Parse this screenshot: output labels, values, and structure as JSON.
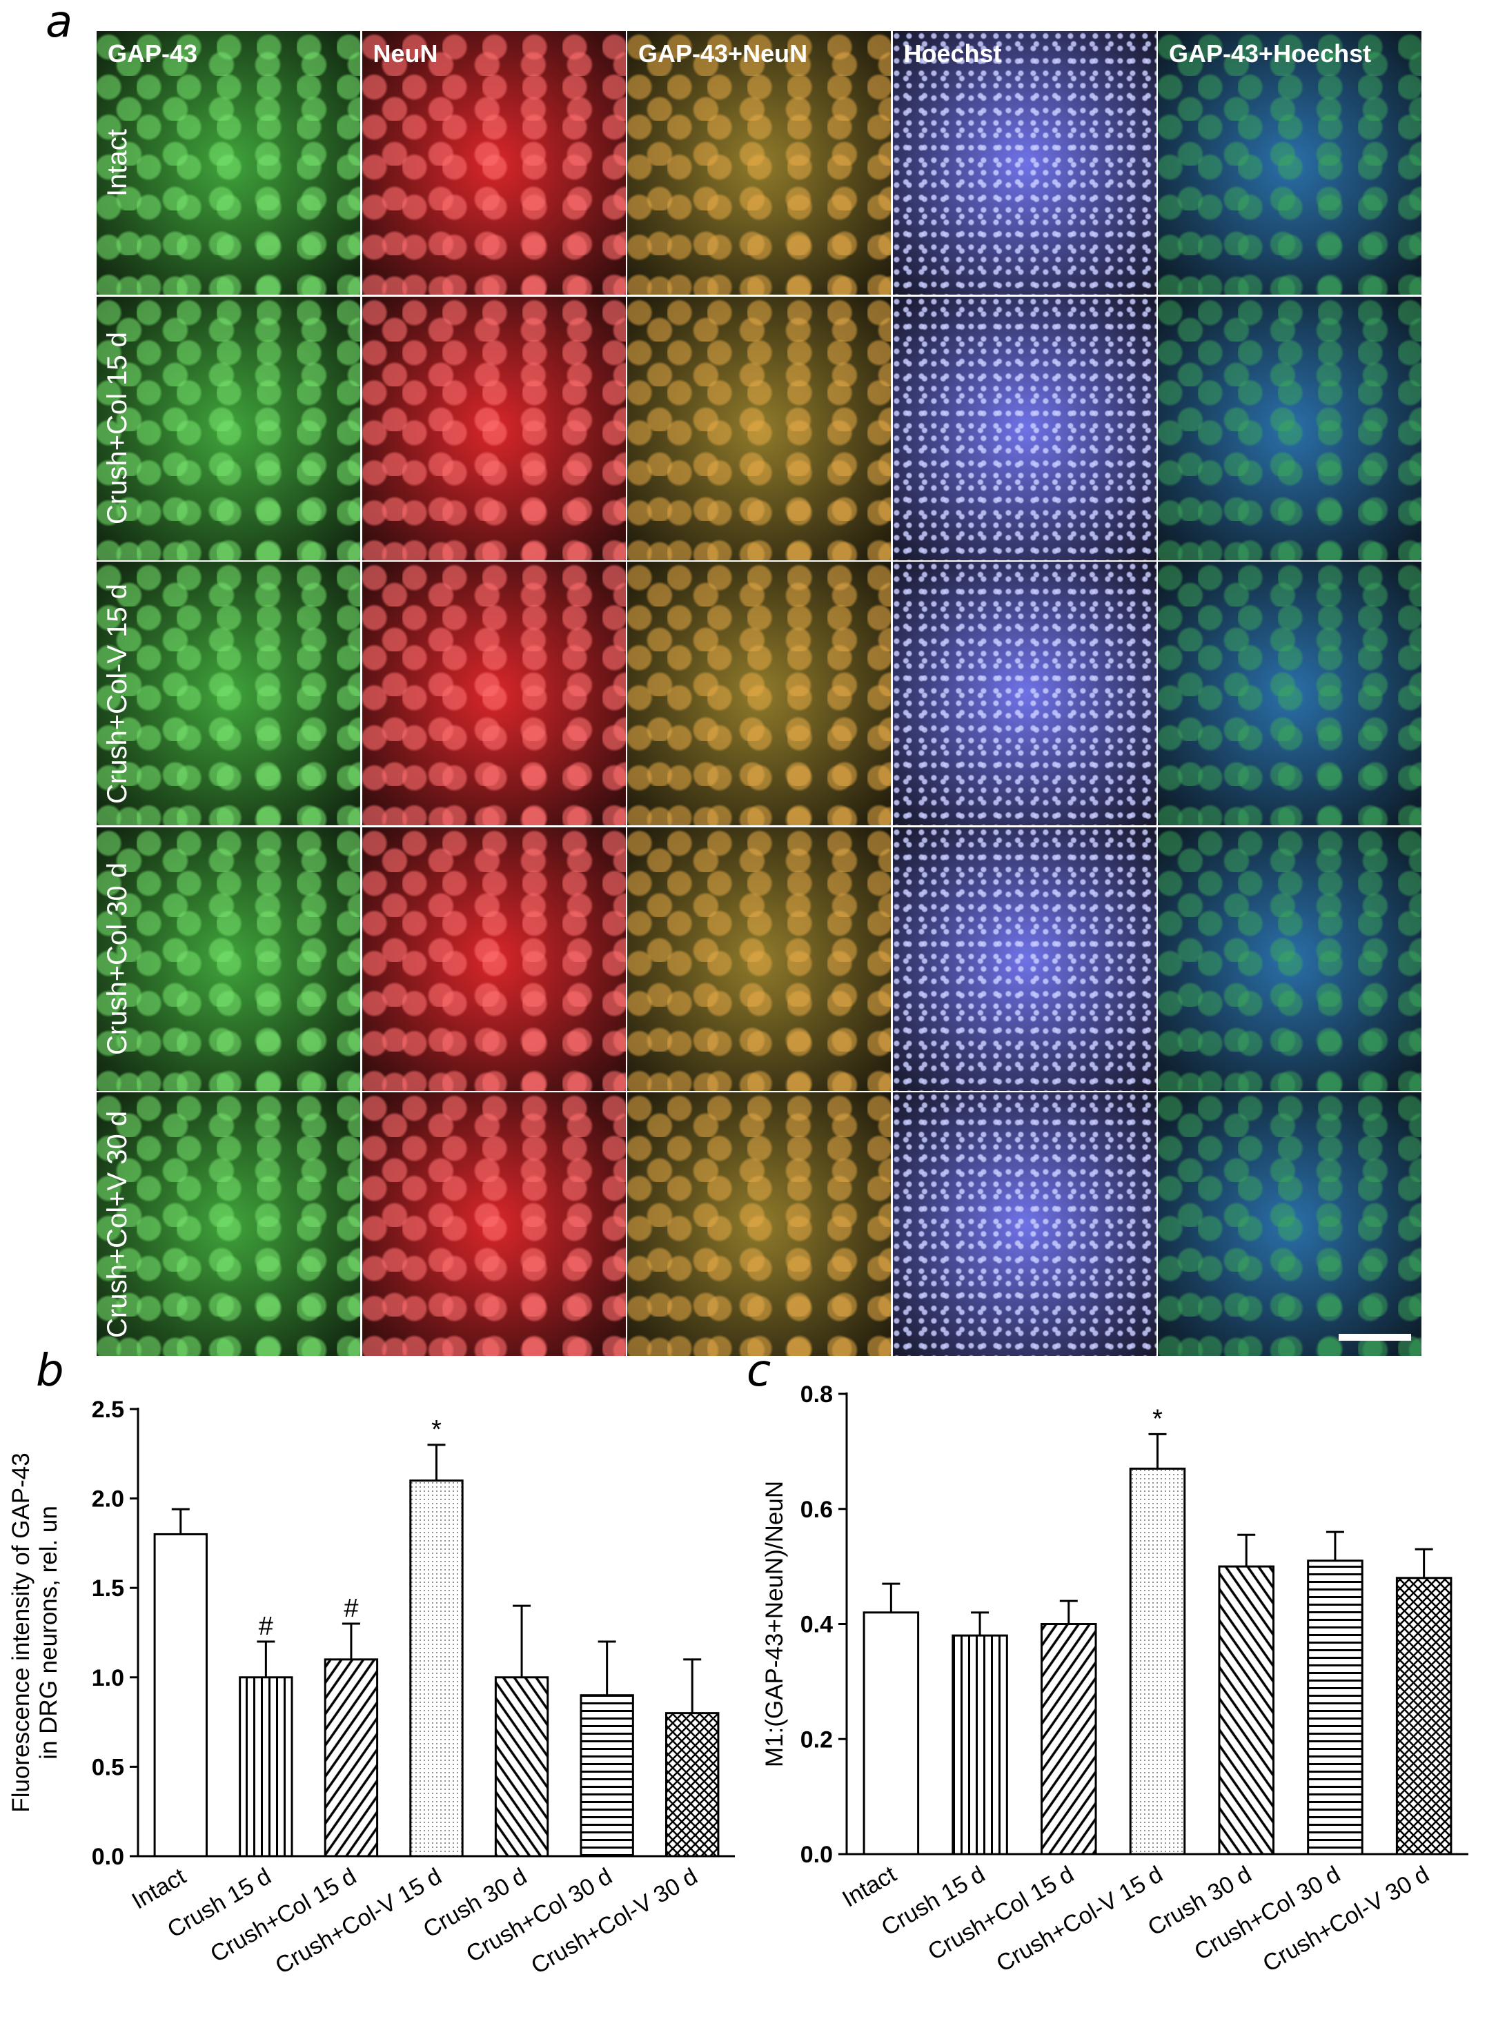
{
  "panel_letters": {
    "a": "a",
    "b": "b",
    "c": "c"
  },
  "micrograph": {
    "columns": [
      "GAP-43",
      "NeuN",
      "GAP-43+NeuN",
      "Hoechst",
      "GAP-43+Hoechst"
    ],
    "rows": [
      "Intact",
      "Crush+Col 15 d",
      "Crush+Col-V 15 d",
      "Crush+Col 30 d",
      "Crush+Col+V 30 d"
    ],
    "channel_colors": {
      "GAP-43": "#3fa33a",
      "NeuN": "#d9262a",
      "GAP-43+NeuN": "#8f7a2a",
      "Hoechst": "#6f72e6",
      "GAP-43+Hoechst": "#2a6fa8"
    },
    "scale_bar": "white-bar"
  },
  "chart_data": [
    {
      "type": "bar",
      "panel": "b",
      "title": "",
      "ylabel_lines": [
        "Fluorescence intensity of GAP-43",
        "in  DRG neurons, rel. un"
      ],
      "xlabel": "",
      "categories": [
        "Intact",
        "Crush 15 d",
        "Crush+Col 15 d",
        "Crush+Col-V 15 d",
        "Crush 30 d",
        "Crush+Col 30 d",
        "Crush+Col-V 30 d"
      ],
      "values": [
        1.8,
        1.0,
        1.1,
        2.1,
        1.0,
        0.9,
        0.8
      ],
      "errors": [
        0.14,
        0.2,
        0.2,
        0.2,
        0.4,
        0.3,
        0.3
      ],
      "annotations": [
        "",
        "#",
        "#",
        "*",
        "",
        "",
        ""
      ],
      "patterns": [
        "none",
        "vertical",
        "diagonal-up",
        "dots",
        "diagonal-down",
        "horizontal",
        "crosshatch"
      ],
      "ylim": [
        0,
        2.5
      ],
      "yticks": [
        0.0,
        0.5,
        1.0,
        1.5,
        2.0,
        2.5
      ],
      "ytick_labels": [
        "0.0",
        "0.5",
        "1.0",
        "1.5",
        "2.0",
        "2.5"
      ]
    },
    {
      "type": "bar",
      "panel": "c",
      "title": "",
      "ylabel_lines": [
        "M1:(GAP-43+NeuN)/NeuN"
      ],
      "xlabel": "",
      "categories": [
        "Intact",
        "Crush 15 d",
        "Crush+Col 15 d",
        "Crush+Col-V 15 d",
        "Crush 30 d",
        "Crush+Col 30 d",
        "Crush+Col-V 30 d"
      ],
      "values": [
        0.42,
        0.38,
        0.4,
        0.67,
        0.5,
        0.51,
        0.48
      ],
      "errors": [
        0.05,
        0.04,
        0.04,
        0.06,
        0.055,
        0.05,
        0.05
      ],
      "annotations": [
        "",
        "",
        "",
        "*",
        "",
        "",
        ""
      ],
      "patterns": [
        "none",
        "vertical",
        "diagonal-up",
        "dots",
        "diagonal-down",
        "horizontal",
        "crosshatch"
      ],
      "ylim": [
        0,
        0.8
      ],
      "yticks": [
        0.0,
        0.2,
        0.4,
        0.6,
        0.8
      ],
      "ytick_labels": [
        "0.0",
        "0.2",
        "0.4",
        "0.6",
        "0.8"
      ]
    }
  ]
}
